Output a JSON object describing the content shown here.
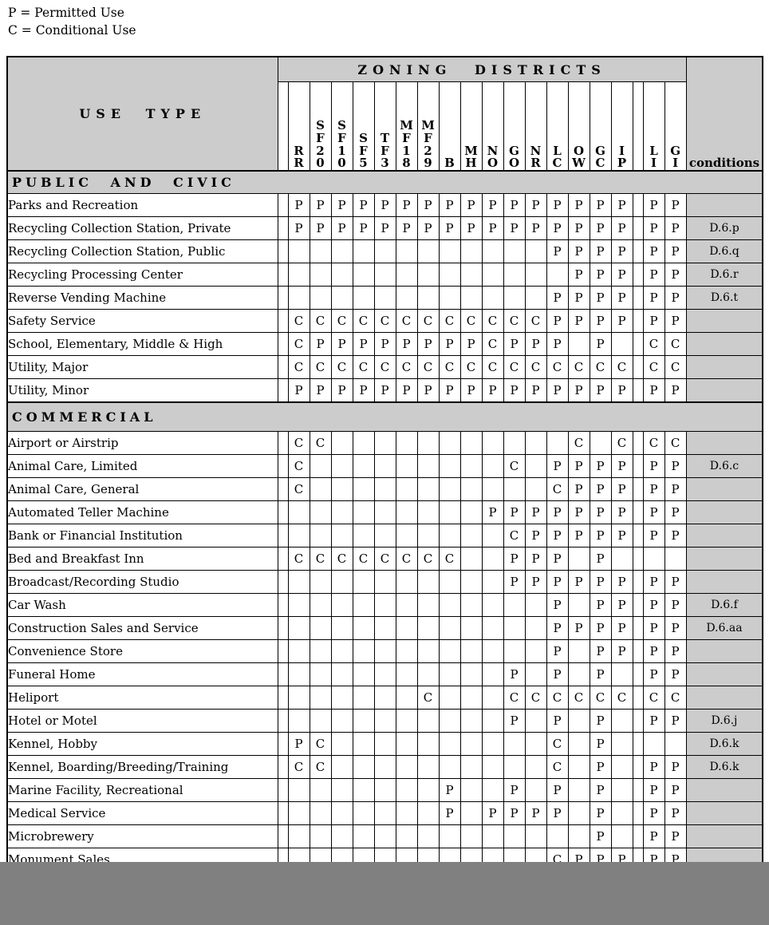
{
  "legend": {
    "permitted": "P = Permitted Use",
    "conditional": "C = Conditional Use"
  },
  "colors": {
    "header_gray": "#cccccc",
    "bottom_band_gray": "#808080",
    "border": "#000000"
  },
  "table": {
    "title": "ZONING DISTRICTS",
    "use_type_label": "USE TYPE",
    "conditions_label": "conditions",
    "columns": [
      {
        "id": "sp1",
        "letters": []
      },
      {
        "id": "RR",
        "letters": [
          "R",
          "R"
        ]
      },
      {
        "id": "SF20",
        "letters": [
          "S",
          "F",
          "2",
          "0"
        ]
      },
      {
        "id": "SF10",
        "letters": [
          "S",
          "F",
          "1",
          "0"
        ]
      },
      {
        "id": "SF5",
        "letters": [
          "S",
          "F",
          "5"
        ]
      },
      {
        "id": "TF3",
        "letters": [
          "T",
          "F",
          "3"
        ]
      },
      {
        "id": "MF18",
        "letters": [
          "M",
          "F",
          "1",
          "8"
        ]
      },
      {
        "id": "MF29",
        "letters": [
          "M",
          "F",
          "2",
          "9"
        ]
      },
      {
        "id": "B",
        "letters": [
          "B"
        ]
      },
      {
        "id": "MH",
        "letters": [
          "M",
          "H"
        ]
      },
      {
        "id": "NO",
        "letters": [
          "N",
          "O"
        ]
      },
      {
        "id": "GO",
        "letters": [
          "G",
          "O"
        ]
      },
      {
        "id": "NR",
        "letters": [
          "N",
          "R"
        ]
      },
      {
        "id": "LC",
        "letters": [
          "L",
          "C"
        ]
      },
      {
        "id": "OW",
        "letters": [
          "O",
          "W"
        ]
      },
      {
        "id": "GC",
        "letters": [
          "G",
          "C"
        ]
      },
      {
        "id": "IP",
        "letters": [
          "I",
          "P"
        ]
      },
      {
        "id": "sp2",
        "letters": []
      },
      {
        "id": "LI",
        "letters": [
          "L",
          "I"
        ]
      },
      {
        "id": "GI",
        "letters": [
          "G",
          "I"
        ]
      }
    ],
    "sections": [
      {
        "label": "PUBLIC AND CIVIC",
        "rows": [
          {
            "label": "Parks and Recreation",
            "cells": [
              "",
              "P",
              "P",
              "P",
              "P",
              "P",
              "P",
              "P",
              "P",
              "P",
              "P",
              "P",
              "P",
              "P",
              "P",
              "P",
              "P",
              "",
              "P",
              "P"
            ],
            "condition": ""
          },
          {
            "label": "Recycling Collection Station, Private",
            "cells": [
              "",
              "P",
              "P",
              "P",
              "P",
              "P",
              "P",
              "P",
              "P",
              "P",
              "P",
              "P",
              "P",
              "P",
              "P",
              "P",
              "P",
              "",
              "P",
              "P"
            ],
            "condition": "D.6.p"
          },
          {
            "label": "Recycling Collection Station, Public",
            "cells": [
              "",
              "",
              "",
              "",
              "",
              "",
              "",
              "",
              "",
              "",
              "",
              "",
              "",
              "P",
              "P",
              "P",
              "P",
              "",
              "P",
              "P"
            ],
            "condition": "D.6.q"
          },
          {
            "label": "Recycling Processing Center",
            "cells": [
              "",
              "",
              "",
              "",
              "",
              "",
              "",
              "",
              "",
              "",
              "",
              "",
              "",
              "",
              "P",
              "P",
              "P",
              "",
              "P",
              "P"
            ],
            "condition": "D.6.r"
          },
          {
            "label": "Reverse Vending Machine",
            "cells": [
              "",
              "",
              "",
              "",
              "",
              "",
              "",
              "",
              "",
              "",
              "",
              "",
              "",
              "P",
              "P",
              "P",
              "P",
              "",
              "P",
              "P"
            ],
            "condition": "D.6.t"
          },
          {
            "label": "Safety Service",
            "cells": [
              "",
              "C",
              "C",
              "C",
              "C",
              "C",
              "C",
              "C",
              "C",
              "C",
              "C",
              "C",
              "C",
              "P",
              "P",
              "P",
              "P",
              "",
              "P",
              "P"
            ],
            "condition": ""
          },
          {
            "label": "School, Elementary, Middle & High",
            "cells": [
              "",
              "C",
              "P",
              "P",
              "P",
              "P",
              "P",
              "P",
              "P",
              "P",
              "C",
              "P",
              "P",
              "P",
              "",
              "P",
              "",
              "",
              "C",
              "C"
            ],
            "condition": ""
          },
          {
            "label": "Utility, Major",
            "cells": [
              "",
              "C",
              "C",
              "C",
              "C",
              "C",
              "C",
              "C",
              "C",
              "C",
              "C",
              "C",
              "C",
              "C",
              "C",
              "C",
              "C",
              "",
              "C",
              "C"
            ],
            "condition": ""
          },
          {
            "label": "Utility, Minor",
            "cells": [
              "",
              "P",
              "P",
              "P",
              "P",
              "P",
              "P",
              "P",
              "P",
              "P",
              "P",
              "P",
              "P",
              "P",
              "P",
              "P",
              "P",
              "",
              "P",
              "P"
            ],
            "condition": ""
          }
        ]
      },
      {
        "label": "COMMERCIAL",
        "rows": [
          {
            "label": "Airport or Airstrip",
            "cells": [
              "",
              "C",
              "C",
              "",
              "",
              "",
              "",
              "",
              "",
              "",
              "",
              "",
              "",
              "",
              "C",
              "",
              "C",
              "",
              "C",
              "C"
            ],
            "condition": ""
          },
          {
            "label": "Animal Care, Limited",
            "cells": [
              "",
              "C",
              "",
              "",
              "",
              "",
              "",
              "",
              "",
              "",
              "",
              "C",
              "",
              "P",
              "P",
              "P",
              "P",
              "",
              "P",
              "P"
            ],
            "condition": "D.6.c"
          },
          {
            "label": "Animal Care, General",
            "cells": [
              "",
              "C",
              "",
              "",
              "",
              "",
              "",
              "",
              "",
              "",
              "",
              "",
              "",
              "C",
              "P",
              "P",
              "P",
              "",
              "P",
              "P"
            ],
            "condition": ""
          },
          {
            "label": "Automated Teller Machine",
            "cells": [
              "",
              "",
              "",
              "",
              "",
              "",
              "",
              "",
              "",
              "",
              "P",
              "P",
              "P",
              "P",
              "P",
              "P",
              "P",
              "",
              "P",
              "P"
            ],
            "condition": ""
          },
          {
            "label": "Bank or Financial Institution",
            "cells": [
              "",
              "",
              "",
              "",
              "",
              "",
              "",
              "",
              "",
              "",
              "",
              "C",
              "P",
              "P",
              "P",
              "P",
              "P",
              "",
              "P",
              "P"
            ],
            "condition": ""
          },
          {
            "label": "Bed and Breakfast Inn",
            "cells": [
              "",
              "C",
              "C",
              "C",
              "C",
              "C",
              "C",
              "C",
              "C",
              "",
              "",
              "P",
              "P",
              "P",
              "",
              "P",
              "",
              "",
              "",
              ""
            ],
            "condition": ""
          },
          {
            "label": "Broadcast/Recording Studio",
            "cells": [
              "",
              "",
              "",
              "",
              "",
              "",
              "",
              "",
              "",
              "",
              "",
              "P",
              "P",
              "P",
              "P",
              "P",
              "P",
              "",
              "P",
              "P"
            ],
            "condition": ""
          },
          {
            "label": "Car Wash",
            "cells": [
              "",
              "",
              "",
              "",
              "",
              "",
              "",
              "",
              "",
              "",
              "",
              "",
              "",
              "P",
              "",
              "P",
              "P",
              "",
              "P",
              "P"
            ],
            "condition": "D.6.f"
          },
          {
            "label": "Construction Sales and Service",
            "cells": [
              "",
              "",
              "",
              "",
              "",
              "",
              "",
              "",
              "",
              "",
              "",
              "",
              "",
              "P",
              "P",
              "P",
              "P",
              "",
              "P",
              "P"
            ],
            "condition": "D.6.aa"
          },
          {
            "label": "Convenience Store",
            "cells": [
              "",
              "",
              "",
              "",
              "",
              "",
              "",
              "",
              "",
              "",
              "",
              "",
              "",
              "P",
              "",
              "P",
              "P",
              "",
              "P",
              "P"
            ],
            "condition": ""
          },
          {
            "label": "Funeral Home",
            "cells": [
              "",
              "",
              "",
              "",
              "",
              "",
              "",
              "",
              "",
              "",
              "",
              "P",
              "",
              "P",
              "",
              "P",
              "",
              "",
              "P",
              "P"
            ],
            "condition": ""
          },
          {
            "label": "Heliport",
            "cells": [
              "",
              "",
              "",
              "",
              "",
              "",
              "",
              "C",
              "",
              "",
              "",
              "C",
              "C",
              "C",
              "C",
              "C",
              "C",
              "",
              "C",
              "C"
            ],
            "condition": ""
          },
          {
            "label": "Hotel or Motel",
            "cells": [
              "",
              "",
              "",
              "",
              "",
              "",
              "",
              "",
              "",
              "",
              "",
              "P",
              "",
              "P",
              "",
              "P",
              "",
              "",
              "P",
              "P"
            ],
            "condition": "D.6.j"
          },
          {
            "label": "Kennel, Hobby",
            "cells": [
              "",
              "P",
              "C",
              "",
              "",
              "",
              "",
              "",
              "",
              "",
              "",
              "",
              "",
              "C",
              "",
              "P",
              "",
              "",
              "",
              ""
            ],
            "condition": "D.6.k"
          },
          {
            "label": "Kennel, Boarding/Breeding/Training",
            "cells": [
              "",
              "C",
              "C",
              "",
              "",
              "",
              "",
              "",
              "",
              "",
              "",
              "",
              "",
              "C",
              "",
              "P",
              "",
              "",
              "P",
              "P"
            ],
            "condition": "D.6.k"
          },
          {
            "label": "Marine Facility, Recreational",
            "cells": [
              "",
              "",
              "",
              "",
              "",
              "",
              "",
              "",
              "P",
              "",
              "",
              "P",
              "",
              "P",
              "",
              "P",
              "",
              "",
              "P",
              "P"
            ],
            "condition": ""
          },
          {
            "label": "Medical Service",
            "cells": [
              "",
              "",
              "",
              "",
              "",
              "",
              "",
              "",
              "P",
              "",
              "P",
              "P",
              "P",
              "P",
              "",
              "P",
              "",
              "",
              "P",
              "P"
            ],
            "condition": ""
          },
          {
            "label": "Microbrewery",
            "cells": [
              "",
              "",
              "",
              "",
              "",
              "",
              "",
              "",
              "",
              "",
              "",
              "",
              "",
              "",
              "",
              "P",
              "",
              "",
              "P",
              "P"
            ],
            "condition": ""
          },
          {
            "label": "Monument Sales",
            "cells": [
              "",
              "",
              "",
              "",
              "",
              "",
              "",
              "",
              "",
              "",
              "",
              "",
              "",
              "C",
              "P",
              "P",
              "P",
              "",
              "P",
              "P"
            ],
            "condition": ""
          }
        ]
      }
    ]
  }
}
